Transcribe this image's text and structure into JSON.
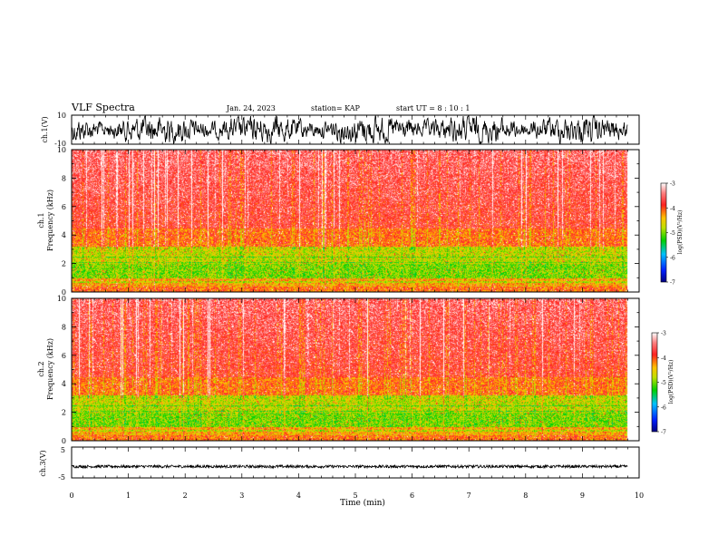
{
  "header": {
    "title": "VLF Spectra",
    "date": "Jan. 24, 2023",
    "station": "station= KAP",
    "start": "start  UT =   8 : 10 : 1"
  },
  "chart_data": [
    {
      "type": "line",
      "name": "ch1-waveform",
      "ylabel": "ch.1(V)",
      "ylim": [
        -10,
        10
      ],
      "yticks": [
        "10",
        "-10"
      ],
      "xlim": [
        0,
        10
      ],
      "data_end": 9.8,
      "amplitude_range": [
        -10,
        10
      ]
    },
    {
      "type": "heatmap",
      "name": "ch1-spectrogram",
      "ylabel": "ch.1",
      "ylabel2": "Frequency (kHz)",
      "ylim": [
        0,
        10
      ],
      "yticks": [
        "0",
        "2",
        "4",
        "6",
        "8",
        "10"
      ],
      "xlim": [
        0,
        10
      ],
      "data_end": 9.8,
      "colorbar": {
        "label": "log(PSD)(V²/Hz)",
        "range": [
          -7,
          -3
        ],
        "ticks": [
          "-3",
          "-4",
          "-5",
          "-6",
          "-7"
        ]
      }
    },
    {
      "type": "heatmap",
      "name": "ch2-spectrogram",
      "ylabel": "ch.2",
      "ylabel2": "Frequency (kHz)",
      "ylim": [
        0,
        10
      ],
      "yticks": [
        "0",
        "2",
        "4",
        "6",
        "8",
        "10"
      ],
      "xlim": [
        0,
        10
      ],
      "data_end": 9.8,
      "colorbar": {
        "label": "log(PSD)(V²/Hz)",
        "range": [
          -7,
          -3
        ],
        "ticks": [
          "-3",
          "-4",
          "-5",
          "-6",
          "-7"
        ]
      }
    },
    {
      "type": "line",
      "name": "ch3-waveform",
      "ylabel": "ch.3(V)",
      "ylim": [
        -5,
        5
      ],
      "yticks": [
        "5",
        "-5"
      ],
      "xlim": [
        0,
        10
      ],
      "data_end": 9.8,
      "center_value": -1.3,
      "amplitude": 0.45
    }
  ],
  "xaxis": {
    "label": "Time  (min)",
    "ticks": [
      "0",
      "1",
      "2",
      "3",
      "4",
      "5",
      "6",
      "7",
      "8",
      "9",
      "10"
    ]
  },
  "colors": {
    "trace": "#000000",
    "spectrum": [
      "#0000b0",
      "#0050ff",
      "#00c8ff",
      "#00d000",
      "#90e000",
      "#ffe000",
      "#ff8c00",
      "#ff1010",
      "#ff6060",
      "#ffffff"
    ]
  }
}
